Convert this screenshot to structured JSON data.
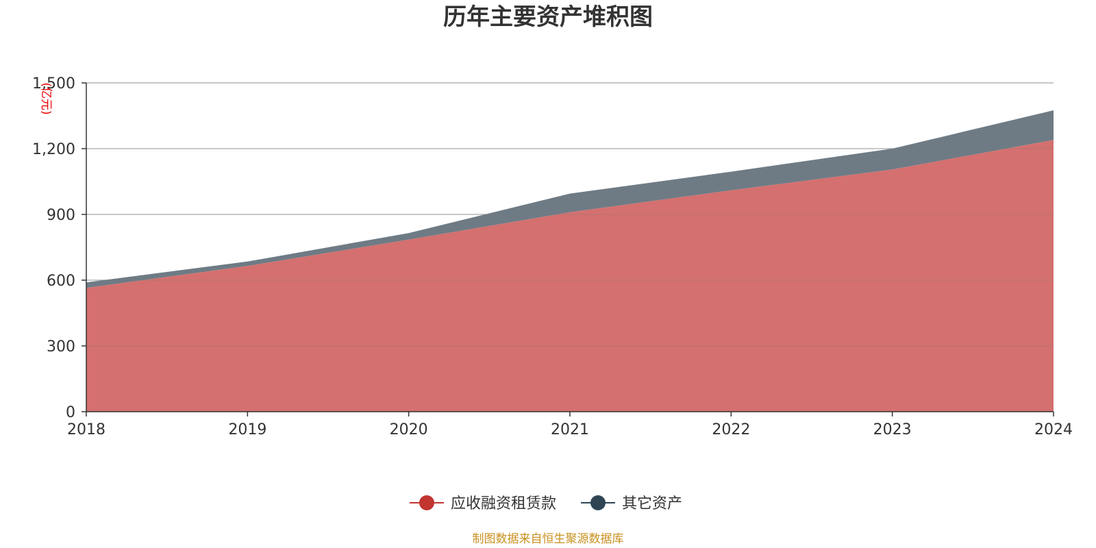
{
  "chart_data": {
    "type": "area",
    "stacked": true,
    "title": "历年主要资产堆积图",
    "x": [
      "2018",
      "2019",
      "2020",
      "2021",
      "2022",
      "2023",
      "2024"
    ],
    "series": [
      {
        "name": "应收融资租赁款",
        "values": [
          565,
          665,
          785,
          910,
          1010,
          1105,
          1240
        ],
        "color": "#d4706f",
        "legend_color": "#c23531"
      },
      {
        "name": "其它资产",
        "values": [
          25,
          20,
          30,
          85,
          85,
          95,
          135
        ],
        "color": "#6e7b85",
        "legend_color": "#2f4554"
      }
    ],
    "ylabel": "(亿元)",
    "ylim": [
      0,
      1500
    ],
    "yticks": [
      0,
      300,
      600,
      900,
      1200,
      1500
    ],
    "ytick_labels": [
      "0",
      "300",
      "600",
      "900",
      "1,200",
      "1,500"
    ],
    "grid": true,
    "legend_position": "bottom-center"
  },
  "source": "制图数据来自恒生聚源数据库"
}
